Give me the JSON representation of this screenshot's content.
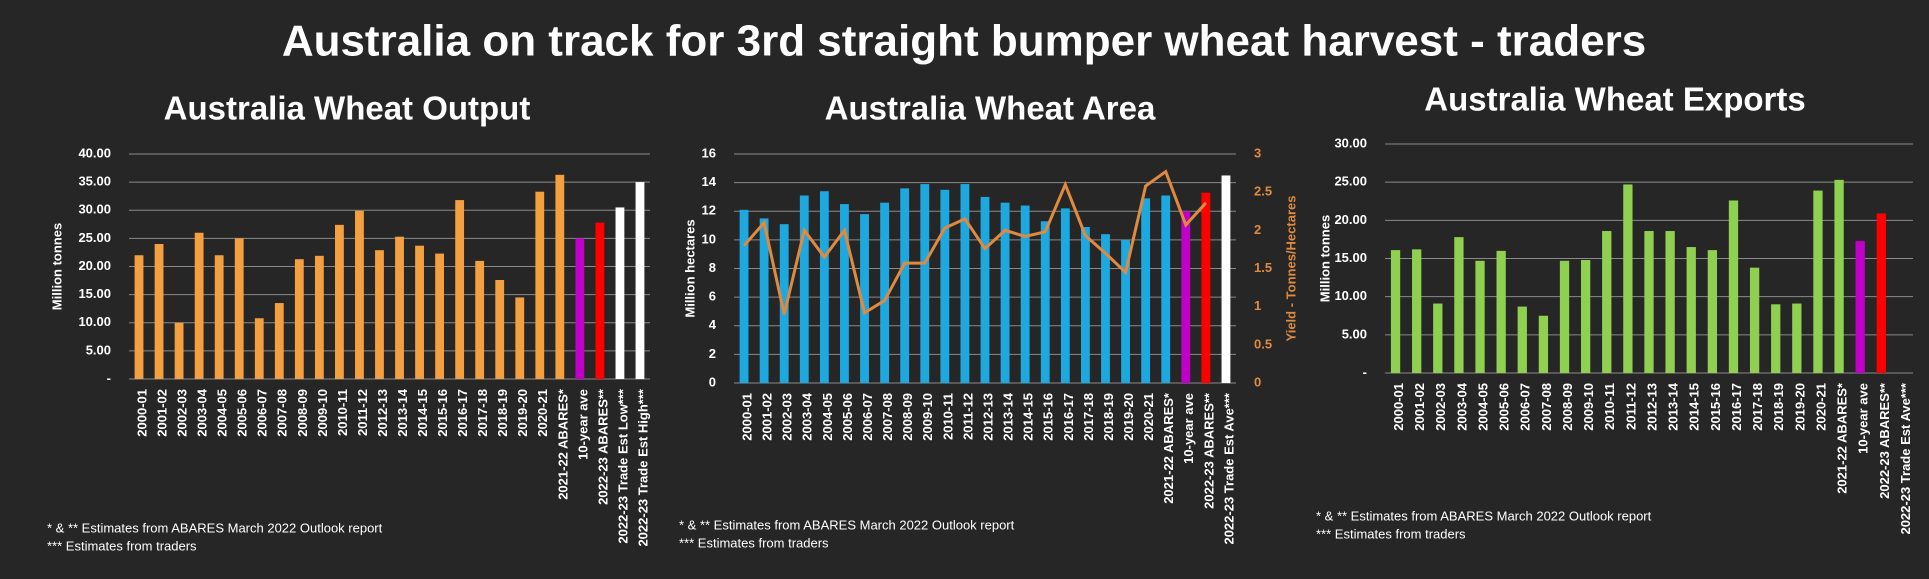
{
  "title": "Australia on track for 3rd straight bumper wheat harvest - traders",
  "chart_data": [
    {
      "type": "bar",
      "title": "Australia Wheat Output",
      "ylabel": "Million tonnes",
      "categories": [
        "2000-01",
        "2001-02",
        "2002-03",
        "2003-04",
        "2004-05",
        "2005-06",
        "2006-07",
        "2007-08",
        "2008-09",
        "2009-10",
        "2010-11",
        "2011-12",
        "2012-13",
        "2013-14",
        "2014-15",
        "2015-16",
        "2016-17",
        "2017-18",
        "2018-19",
        "2019-20",
        "2020-21",
        "2021-22 ABARES*",
        "10-year ave",
        "2022-23 ABARES**",
        "2022-23 Trade Est Low***",
        "2022-23 Trade Est High***"
      ],
      "values": [
        22,
        24,
        10,
        26,
        22,
        25,
        10.8,
        13.5,
        21.3,
        21.9,
        27.4,
        29.9,
        22.9,
        25.3,
        23.7,
        22.3,
        31.8,
        21,
        17.6,
        14.5,
        33.3,
        36.3,
        25,
        27.8,
        30.5,
        35
      ],
      "colors": [
        "#f4a040",
        "#f4a040",
        "#f4a040",
        "#f4a040",
        "#f4a040",
        "#f4a040",
        "#f4a040",
        "#f4a040",
        "#f4a040",
        "#f4a040",
        "#f4a040",
        "#f4a040",
        "#f4a040",
        "#f4a040",
        "#f4a040",
        "#f4a040",
        "#f4a040",
        "#f4a040",
        "#f4a040",
        "#f4a040",
        "#f4a040",
        "#f4a040",
        "#c000c8",
        "#ff0000",
        "#ffffff",
        "#ffffff"
      ],
      "ylim": [
        0,
        40
      ],
      "yticks": [
        {
          "value": 0,
          "label": "-"
        },
        {
          "value": 5,
          "label": "5.00"
        },
        {
          "value": 10,
          "label": "10.00"
        },
        {
          "value": 15,
          "label": "15.00"
        },
        {
          "value": 20,
          "label": "20.00"
        },
        {
          "value": 25,
          "label": "25.00"
        },
        {
          "value": 30,
          "label": "30.00"
        },
        {
          "value": 35,
          "label": "35.00"
        },
        {
          "value": 40,
          "label": "40.00"
        }
      ],
      "grid": true,
      "notes": [
        "* & ** Estimates from ABARES March 2022 Outlook report",
        "*** Estimates from traders"
      ]
    },
    {
      "type": "combo",
      "title": "Australia Wheat Area",
      "ylabel": "Million hectares",
      "y2label": "Yield - Tonnes/Hectares",
      "categories": [
        "2000-01",
        "2001-02",
        "2002-03",
        "2003-04",
        "2004-05",
        "2005-06",
        "2006-07",
        "2007-08",
        "2008-09",
        "2009-10",
        "2010-11",
        "2011-12",
        "2012-13",
        "2013-14",
        "2014-15",
        "2015-16",
        "2016-17",
        "2017-18",
        "2018-19",
        "2019-20",
        "2020-21",
        "2021-22 ABARES*",
        "10-year ave",
        "2022-23 ABARES**",
        "2022-23 Trade Est Ave***"
      ],
      "series": [
        {
          "type": "bar",
          "values": [
            12.1,
            11.5,
            11.1,
            13.1,
            13.4,
            12.5,
            11.8,
            12.6,
            13.6,
            13.9,
            13.5,
            13.9,
            13,
            12.6,
            12.4,
            11.3,
            12.2,
            10.9,
            10.4,
            10,
            12.9,
            13.1,
            12,
            13.3,
            14.5
          ],
          "colors": [
            "#1ea8e0",
            "#1ea8e0",
            "#1ea8e0",
            "#1ea8e0",
            "#1ea8e0",
            "#1ea8e0",
            "#1ea8e0",
            "#1ea8e0",
            "#1ea8e0",
            "#1ea8e0",
            "#1ea8e0",
            "#1ea8e0",
            "#1ea8e0",
            "#1ea8e0",
            "#1ea8e0",
            "#1ea8e0",
            "#1ea8e0",
            "#1ea8e0",
            "#1ea8e0",
            "#1ea8e0",
            "#1ea8e0",
            "#1ea8e0",
            "#c000c8",
            "#ff0000",
            "#ffffff"
          ]
        },
        {
          "type": "line",
          "axis": "y2",
          "color": "#e08a40",
          "values": [
            1.8,
            2.1,
            0.9,
            2.0,
            1.65,
            2.0,
            0.92,
            1.08,
            1.57,
            1.57,
            2.03,
            2.15,
            1.76,
            2.0,
            1.92,
            1.98,
            2.6,
            1.93,
            1.7,
            1.45,
            2.58,
            2.77,
            2.07,
            2.36,
            null
          ]
        }
      ],
      "ylim": [
        0,
        16
      ],
      "yticks": [
        0,
        2,
        4,
        6,
        8,
        10,
        12,
        14,
        16
      ],
      "y2lim": [
        0,
        3
      ],
      "y2ticks": [
        0,
        0.5,
        1,
        1.5,
        2,
        2.5,
        3
      ],
      "grid": true,
      "notes": [
        "* & ** Estimates from ABARES March 2022 Outlook report",
        "*** Estimates from traders"
      ]
    },
    {
      "type": "bar",
      "title": "Australia Wheat Exports",
      "ylabel": "Million tonnes",
      "categories": [
        "2000-01",
        "2001-02",
        "2002-03",
        "2003-04",
        "2004-05",
        "2005-06",
        "2006-07",
        "2007-08",
        "2008-09",
        "2009-10",
        "2010-11",
        "2011-12",
        "2012-13",
        "2013-14",
        "2014-15",
        "2015-16",
        "2016-17",
        "2017-18",
        "2018-19",
        "2019-20",
        "2020-21",
        "2021-22 ABARES*",
        "10-year ave",
        "2022-23 ABARES**",
        "2022-23 Trade Est Ave***"
      ],
      "values": [
        16.1,
        16.2,
        9.1,
        17.8,
        14.7,
        16,
        8.7,
        7.5,
        14.7,
        14.8,
        18.6,
        24.7,
        18.6,
        18.6,
        16.5,
        16.1,
        22.6,
        13.8,
        9,
        9.1,
        23.9,
        25.3,
        17.3,
        20.9,
        null
      ],
      "colors": [
        "#8fd050",
        "#8fd050",
        "#8fd050",
        "#8fd050",
        "#8fd050",
        "#8fd050",
        "#8fd050",
        "#8fd050",
        "#8fd050",
        "#8fd050",
        "#8fd050",
        "#8fd050",
        "#8fd050",
        "#8fd050",
        "#8fd050",
        "#8fd050",
        "#8fd050",
        "#8fd050",
        "#8fd050",
        "#8fd050",
        "#8fd050",
        "#8fd050",
        "#c000c8",
        "#ff0000",
        "#ffffff"
      ],
      "ylim": [
        0,
        30
      ],
      "yticks": [
        {
          "value": 0,
          "label": "-"
        },
        {
          "value": 5,
          "label": "5.00"
        },
        {
          "value": 10,
          "label": "10.00"
        },
        {
          "value": 15,
          "label": "15.00"
        },
        {
          "value": 20,
          "label": "20.00"
        },
        {
          "value": 25,
          "label": "25.00"
        },
        {
          "value": 30,
          "label": "30.00"
        }
      ],
      "grid": true,
      "notes": [
        "* & ** Estimates from ABARES March 2022 Outlook report",
        "*** Estimates from traders"
      ]
    }
  ]
}
